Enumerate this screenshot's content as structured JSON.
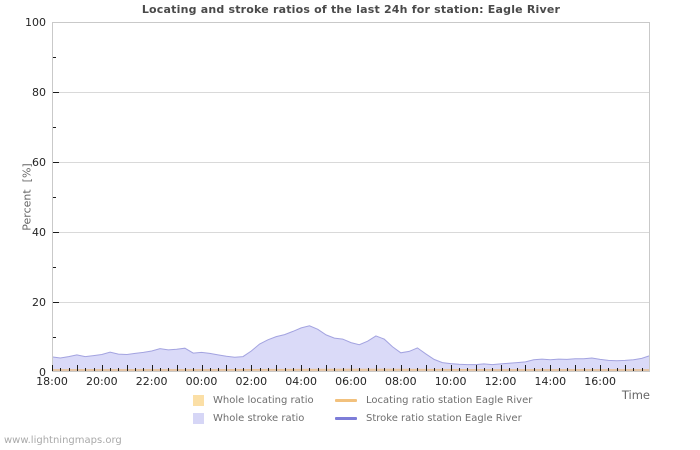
{
  "page": {
    "footer": "www.lightningmaps.org"
  },
  "chart_data": {
    "type": "area",
    "title": "Locating and stroke ratios of the last 24h for station: Eagle River",
    "xlabel": "Time",
    "ylabel": "Percent  [%]",
    "ylim": [
      0,
      100
    ],
    "x_span_hours": 24,
    "x_start_label": "18:00",
    "grid": true,
    "yticks_major": [
      0,
      20,
      40,
      60,
      80,
      100
    ],
    "yticks_minor": [
      10,
      30,
      50,
      70,
      90
    ],
    "xtick_labels": [
      "18:00",
      "20:00",
      "22:00",
      "00:00",
      "02:00",
      "04:00",
      "06:00",
      "08:00",
      "10:00",
      "12:00",
      "14:00",
      "16:00"
    ],
    "xtick_label_every_hours": 2,
    "xtick_minor_every_minutes": 20,
    "colors": {
      "grid": "#d9d9d9",
      "border": "#c9c9c9",
      "tick": "#1c1c1c",
      "whole_locating_fill": "#f3dcc0",
      "whole_locating_edge": "#e8c296",
      "whole_stroke_fill": "#dadaf8",
      "whole_stroke_edge": "#a3a3e0",
      "locating_station_line": "#f2c17d",
      "stroke_station_line": "#7d7dd8"
    },
    "legend": [
      {
        "label": "Whole locating ratio",
        "swatch": "box",
        "color": "#fbdfa6"
      },
      {
        "label": "Locating ratio station Eagle River",
        "swatch": "line",
        "color": "#f2c17d"
      },
      {
        "label": "Whole stroke ratio",
        "swatch": "box",
        "color": "#d6d6f6"
      },
      {
        "label": "Stroke ratio station Eagle River",
        "swatch": "line",
        "color": "#7d7dd8"
      }
    ],
    "series": [
      {
        "name": "Whole stroke ratio",
        "kind": "area",
        "fill": "#dadaf8",
        "stroke": "#a3a3e0",
        "x_start_h": 0,
        "x_step_h": 0.33333,
        "values": [
          4.3,
          4.0,
          4.4,
          4.9,
          4.4,
          4.7,
          5.0,
          5.7,
          5.1,
          5.0,
          5.3,
          5.6,
          6.0,
          6.7,
          6.3,
          6.5,
          6.8,
          5.4,
          5.6,
          5.3,
          4.9,
          4.5,
          4.2,
          4.4,
          6.0,
          8.0,
          9.2,
          10.1,
          10.7,
          11.6,
          12.6,
          13.2,
          12.2,
          10.6,
          9.7,
          9.4,
          8.4,
          7.8,
          8.8,
          10.3,
          9.4,
          7.2,
          5.5,
          5.9,
          6.9,
          5.2,
          3.6,
          2.7,
          2.4,
          2.2,
          2.1,
          2.1,
          2.3,
          2.1,
          2.3,
          2.5,
          2.7,
          2.9,
          3.5,
          3.7,
          3.5,
          3.7,
          3.6,
          3.8,
          3.8,
          4.0,
          3.6,
          3.3,
          3.2,
          3.3,
          3.5,
          3.9,
          4.7
        ]
      },
      {
        "name": "Whole locating ratio",
        "kind": "area",
        "fill": "#f3dcc0",
        "stroke": "#e8c296",
        "x": [
          0,
          6,
          12,
          18,
          24
        ],
        "values": [
          0.7,
          0.7,
          0.8,
          0.7,
          0.7
        ]
      },
      {
        "name": "Locating ratio station Eagle River",
        "kind": "line",
        "stroke": "#f2c17d",
        "x": [
          0,
          24
        ],
        "values": [
          0.2,
          0.2
        ]
      },
      {
        "name": "Stroke ratio station Eagle River",
        "kind": "line",
        "stroke": "#7d7dd8",
        "x": [
          0,
          24
        ],
        "values": [
          0.1,
          0.1
        ]
      }
    ]
  }
}
